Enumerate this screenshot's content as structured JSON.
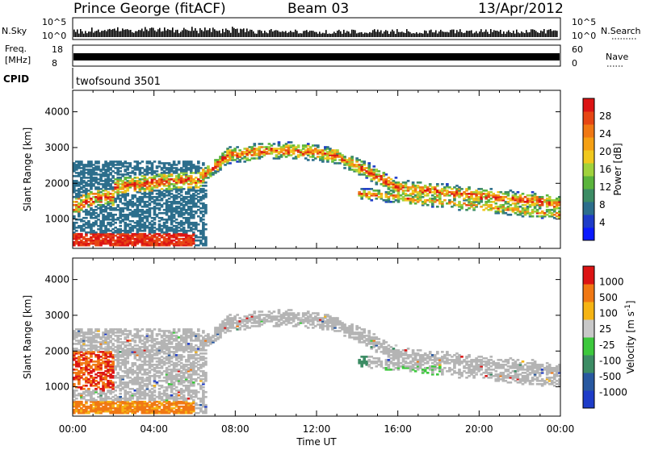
{
  "header": {
    "station": "Prince George (fitACF)",
    "beam": "Beam 03",
    "date": "13/Apr/2012"
  },
  "strips": {
    "nsky_label": "N.Sky",
    "nsky_ticks": [
      "10^5",
      "10^0"
    ],
    "nsearch_label": "N.Search",
    "freq_label_line1": "Freq.",
    "freq_label_line2": "[MHz]",
    "freq_ticks": [
      "18",
      "8"
    ],
    "nave_label": "Nave",
    "nave_ticks": [
      "60",
      "0"
    ],
    "cpid_label": "CPID",
    "cpid_value": "twofsound 3501"
  },
  "chart_data": [
    {
      "type": "heatmap",
      "name": "power",
      "ylabel": "Slant Range [km]",
      "ylim": [
        180,
        4600
      ],
      "yticks": [
        1000,
        2000,
        3000,
        4000
      ],
      "xlim": [
        0,
        24
      ],
      "colorbar": {
        "label": "Power [dB]",
        "ticks": [
          28,
          24,
          20,
          16,
          12,
          8,
          4
        ],
        "colors": [
          "#0a1aff",
          "#1e3cc8",
          "#2c6e8c",
          "#3c8c64",
          "#5ab43c",
          "#a0d23c",
          "#f0c81e",
          "#f5a014",
          "#f07814",
          "#e64614",
          "#dc1414"
        ]
      }
    },
    {
      "type": "heatmap",
      "name": "velocity",
      "ylabel": "Slant Range [km]",
      "ylim": [
        180,
        4600
      ],
      "yticks": [
        1000,
        2000,
        3000,
        4000
      ],
      "xlim": [
        0,
        24
      ],
      "xlabel": "Time UT",
      "xticks": [
        "00:00",
        "04:00",
        "08:00",
        "12:00",
        "16:00",
        "20:00",
        "00:00"
      ],
      "colorbar": {
        "label": "Velocity [m s",
        "label_sup": "-1",
        "label_end": "]",
        "ticks": [
          "1000",
          "500",
          "100",
          "25",
          "-25",
          "-100",
          "-500",
          "-1000"
        ],
        "colors": [
          "#1e3cc8",
          "#2858a0",
          "#3c8c64",
          "#3cc83c",
          "#c8c8c8",
          "#f5b414",
          "#f07814",
          "#dc1414"
        ]
      }
    }
  ],
  "colors": {
    "ground": "#b4b4b4"
  }
}
